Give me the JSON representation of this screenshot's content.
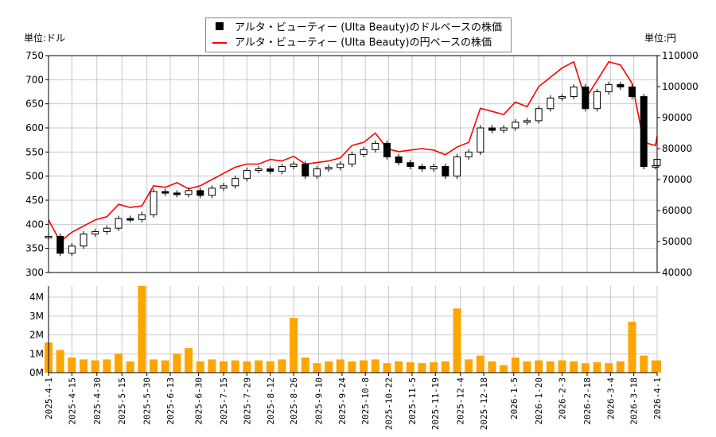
{
  "unit_left": "単位:ドル",
  "unit_right": "単位:円",
  "legend": {
    "dollar": "アルタ・ビューティー (Ulta Beauty)のドルベースの株価",
    "yen": "アルタ・ビューティー (Ulta Beauty)の円ベースの株価"
  },
  "colors": {
    "dollar": "#000000",
    "yen": "#ff0000",
    "volume": "#ffa500",
    "grid": "#c8c8c8"
  },
  "chart_data": [
    {
      "type": "line",
      "title": "",
      "series": [
        {
          "name": "アルタ・ビューティー (Ulta Beauty)のドルベースの株価",
          "axis": "left",
          "style": "candlestick"
        },
        {
          "name": "アルタ・ビューティー (Ulta Beauty)の円ベースの株価",
          "axis": "right",
          "style": "line"
        }
      ],
      "ylim_left": [
        300,
        750
      ],
      "yticks_left": [
        300,
        350,
        400,
        450,
        500,
        550,
        600,
        650,
        700,
        750
      ],
      "ylim_right": [
        40000,
        110000
      ],
      "yticks_right": [
        40000,
        50000,
        60000,
        70000,
        80000,
        90000,
        100000,
        110000
      ],
      "x": [
        "2025-04-01",
        "2025-04-08",
        "2025-04-15",
        "2025-04-22",
        "2025-04-29",
        "2025-05-06",
        "2025-05-13",
        "2025-05-20",
        "2025-05-27",
        "2025-06-03",
        "2025-06-10",
        "2025-06-17",
        "2025-06-24",
        "2025-07-01",
        "2025-07-08",
        "2025-07-15",
        "2025-07-22",
        "2025-07-29",
        "2025-08-05",
        "2025-08-12",
        "2025-08-19",
        "2025-08-26",
        "2025-09-02",
        "2025-09-09",
        "2025-09-16",
        "2025-09-23",
        "2025-09-30",
        "2025-10-07",
        "2025-10-14",
        "2025-10-21",
        "2025-10-28",
        "2025-11-04",
        "2025-11-11",
        "2025-11-18",
        "2025-11-25",
        "2025-12-02",
        "2025-12-09",
        "2025-12-16",
        "2025-12-23",
        "2025-12-30",
        "2026-01-06",
        "2026-01-13",
        "2026-01-20",
        "2026-01-27",
        "2026-02-03",
        "2026-02-10",
        "2026-02-17",
        "2026-02-24",
        "2026-03-03",
        "2026-03-10",
        "2026-03-17",
        "2026-03-24",
        "2026-03-31",
        "2026-04-01"
      ],
      "dollar": [
        375,
        340,
        355,
        380,
        385,
        392,
        412,
        410,
        420,
        468,
        465,
        462,
        470,
        460,
        475,
        480,
        495,
        512,
        515,
        510,
        520,
        525,
        500,
        515,
        518,
        525,
        545,
        555,
        568,
        540,
        528,
        520,
        515,
        520,
        500,
        540,
        550,
        600,
        595,
        600,
        612,
        615,
        640,
        662,
        665,
        685,
        640,
        675,
        690,
        685,
        665,
        520,
        522,
        535
      ],
      "yen": [
        57000,
        50000,
        53000,
        55000,
        57000,
        58000,
        62000,
        61000,
        61500,
        68000,
        67500,
        69000,
        67000,
        68000,
        70000,
        72000,
        74000,
        75000,
        75000,
        76500,
        76000,
        77500,
        75000,
        75500,
        76000,
        77000,
        81000,
        82000,
        85000,
        80000,
        79000,
        79500,
        80000,
        79500,
        78000,
        80500,
        82000,
        93000,
        92000,
        91000,
        95000,
        93500,
        100000,
        103000,
        106000,
        108000,
        96000,
        102000,
        108000,
        107000,
        101000,
        82000,
        81000,
        84000
      ]
    },
    {
      "type": "bar",
      "title": "",
      "ylim": [
        0,
        4600000
      ],
      "yticks": [
        "0M",
        "1M",
        "2M",
        "3M",
        "4M"
      ],
      "xticks": [
        "2025-4-1",
        "2025-4-15",
        "2025-4-30",
        "2025-5-15",
        "2025-5-30",
        "2025-6-13",
        "2025-6-30",
        "2025-7-15",
        "2025-7-29",
        "2025-8-12",
        "2025-8-26",
        "2025-9-10",
        "2025-9-24",
        "2025-10-8",
        "2025-10-22",
        "2025-11-5",
        "2025-11-19",
        "2025-12-4",
        "2025-12-18",
        "2026-1-5",
        "2026-1-20",
        "2026-2-3",
        "2026-2-18",
        "2026-3-4",
        "2026-3-18",
        "2026-4-1"
      ],
      "volume": [
        1600000,
        1200000,
        800000,
        700000,
        650000,
        700000,
        1000000,
        600000,
        4600000,
        700000,
        650000,
        1000000,
        1300000,
        600000,
        700000,
        600000,
        650000,
        600000,
        650000,
        600000,
        700000,
        2900000,
        800000,
        500000,
        600000,
        700000,
        600000,
        650000,
        700000,
        500000,
        600000,
        550000,
        500000,
        550000,
        600000,
        3400000,
        700000,
        900000,
        600000,
        400000,
        800000,
        600000,
        650000,
        600000,
        650000,
        600000,
        500000,
        550000,
        500000,
        600000,
        2700000,
        900000,
        650000,
        650000
      ]
    }
  ]
}
